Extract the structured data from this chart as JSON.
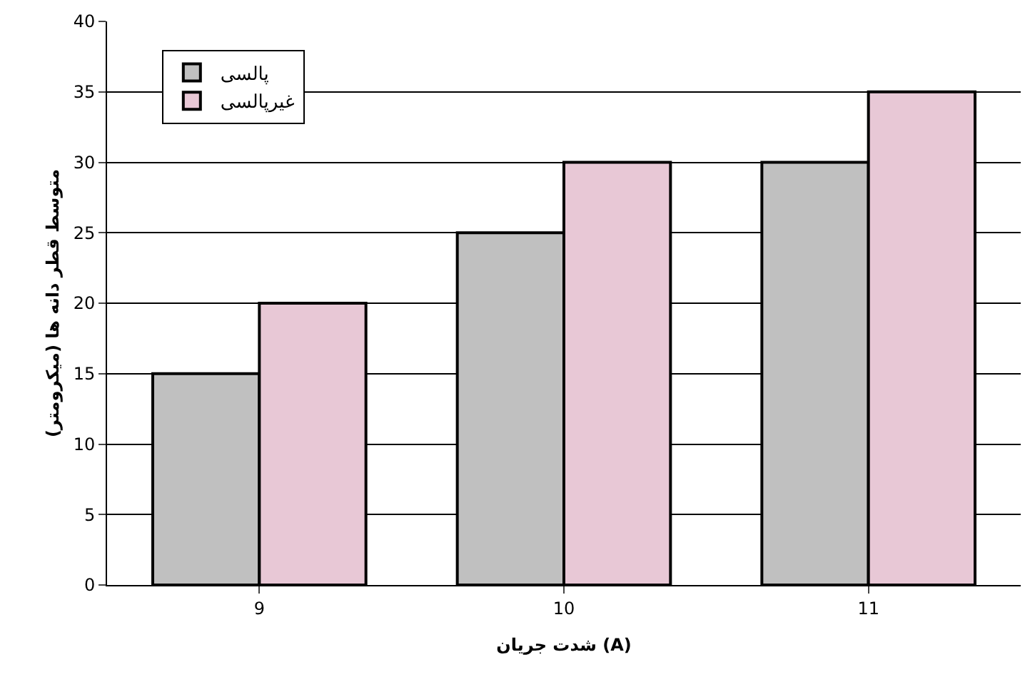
{
  "chart_data": {
    "type": "bar",
    "xlabel": "شدت جریان (A)",
    "ylabel": "متوسط قطر دانه ها (میکرومتر)",
    "categories": [
      "9",
      "10",
      "11"
    ],
    "series": [
      {
        "name": "پالسی",
        "color": "#c0c0c0",
        "values": [
          15,
          25,
          30
        ]
      },
      {
        "name": "غیرپالسی",
        "color": "#e8c8d6",
        "values": [
          20,
          30,
          35
        ]
      }
    ],
    "ylim": [
      0,
      40
    ],
    "yticks": [
      0,
      5,
      10,
      15,
      20,
      25,
      30,
      35,
      40
    ],
    "grid": "y",
    "legend": "top left"
  }
}
